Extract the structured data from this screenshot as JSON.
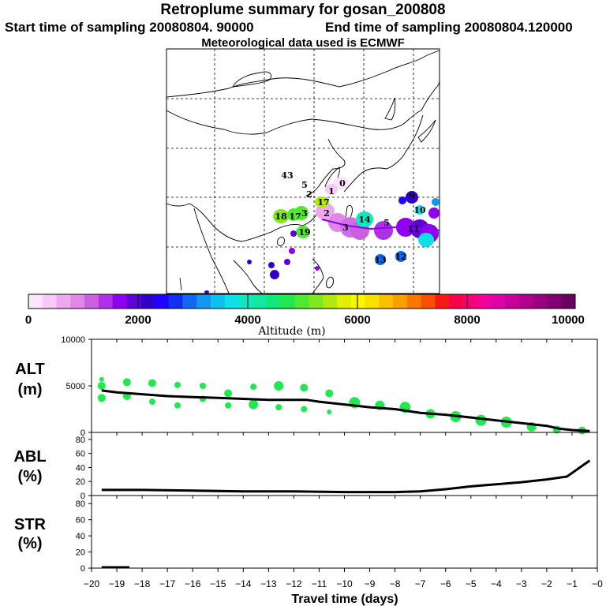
{
  "header": {
    "title": "Retroplume summary for gosan_200808",
    "start": "Start time of sampling 20080804. 90000",
    "end": "End time of sampling 20080804.120000",
    "met": "Meteorological data used is ECMWF"
  },
  "colorbar": {
    "ticks": [
      "0",
      "2000",
      "4000",
      "6000",
      "8000",
      "10000"
    ],
    "label": "Altitude (m)",
    "colors": [
      "#fde6fd",
      "#f8c8f8",
      "#eea8ee",
      "#e088e8",
      "#c860e0",
      "#b030e8",
      "#9000f0",
      "#6000d8",
      "#3000c8",
      "#2000ff",
      "#1030f0",
      "#1068f0",
      "#1098f0",
      "#10c0f0",
      "#10e0e8",
      "#10e8c0",
      "#10e8a0",
      "#10e878",
      "#20e850",
      "#50e830",
      "#80e820",
      "#b0e810",
      "#e0f000",
      "#f8f800",
      "#f8e000",
      "#f8c000",
      "#f8a000",
      "#f87800",
      "#f85000",
      "#f81818",
      "#f8004c",
      "#f80078",
      "#f00098",
      "#e000a8",
      "#c8009c",
      "#b0008c",
      "#980080",
      "#800070",
      "#680064"
    ]
  },
  "map_labels": [
    {
      "t": "43",
      "c": "#6000d8"
    },
    {
      "t": "5",
      "c": "#b030e8"
    },
    {
      "t": "2",
      "c": "#b030e8"
    },
    {
      "t": "1",
      "c": "#e088e8"
    },
    {
      "t": "0",
      "c": "#e088e8"
    },
    {
      "t": "17",
      "c": "#50e830"
    },
    {
      "t": "18",
      "c": "#50e830"
    },
    {
      "t": "17",
      "c": "#50e830"
    },
    {
      "t": "3",
      "c": "#50e830"
    },
    {
      "t": "19",
      "c": "#50e830"
    },
    {
      "t": "2",
      "c": "#e088e8"
    },
    {
      "t": "3",
      "c": "#c860e0"
    },
    {
      "t": "14",
      "c": "#10c0f0"
    },
    {
      "t": "5",
      "c": "#9000f0"
    },
    {
      "t": "13",
      "c": "#1068f0"
    },
    {
      "t": "12",
      "c": "#1068f0"
    },
    {
      "t": "10",
      "c": "#10c0f0"
    },
    {
      "t": "11",
      "c": "#3000c8"
    },
    {
      "t": "9",
      "c": "#9000f0"
    }
  ],
  "chart_data": [
    {
      "type": "scatter",
      "panel": "ALT",
      "ylabel": "ALT\n(m)",
      "ylim": [
        0,
        10000
      ],
      "yticks": [
        "0",
        "5000",
        "10000"
      ],
      "xlim": [
        -20,
        0
      ],
      "line": {
        "x": [
          -19.6,
          -19,
          -18,
          -17,
          -16,
          -15,
          -14,
          -13,
          -12,
          -11.5,
          -11,
          -10,
          -9,
          -8,
          -7.5,
          -7,
          -6,
          -5,
          -4,
          -3,
          -2,
          -1.5,
          -1,
          -0.3
        ],
        "y": [
          4500,
          4300,
          4100,
          3900,
          3800,
          3700,
          3600,
          3500,
          3500,
          3500,
          3300,
          3000,
          2700,
          2500,
          2300,
          2100,
          1900,
          1600,
          1300,
          1000,
          700,
          400,
          250,
          150
        ]
      },
      "points": {
        "x": [
          -19.6,
          -19.6,
          -19.6,
          -18.6,
          -18.6,
          -17.6,
          -17.6,
          -16.6,
          -16.6,
          -15.6,
          -15.6,
          -14.6,
          -14.6,
          -13.6,
          -13.6,
          -12.6,
          -12.6,
          -11.6,
          -11.6,
          -10.6,
          -10.6,
          -9.6,
          -8.6,
          -7.6,
          -6.6,
          -5.6,
          -4.6,
          -3.6,
          -2.6,
          -1.6,
          -0.6
        ],
        "y": [
          5700,
          5000,
          3700,
          5400,
          3900,
          5300,
          3300,
          5100,
          2900,
          5000,
          3600,
          4200,
          2900,
          4900,
          3000,
          5000,
          2700,
          4800,
          2500,
          4200,
          2200,
          3200,
          2900,
          2700,
          2000,
          1700,
          1300,
          1100,
          600,
          300,
          200
        ],
        "size": [
          3,
          5,
          5,
          5,
          5,
          5,
          4,
          4,
          4,
          4,
          4,
          5,
          4,
          4,
          6,
          6,
          4,
          5,
          4,
          5,
          3,
          7,
          6,
          7,
          6,
          7,
          7,
          7,
          6,
          5,
          5
        ],
        "color": "#20e850"
      }
    },
    {
      "type": "line",
      "panel": "ABL",
      "ylabel": "ABL\n(%)",
      "ylim": [
        0,
        90
      ],
      "yticks": [
        "0",
        "20",
        "40",
        "60",
        "80"
      ],
      "xlim": [
        -20,
        0
      ],
      "x": [
        -19.6,
        -18,
        -16,
        -14,
        -12,
        -10,
        -8,
        -7,
        -6,
        -5,
        -4,
        -3,
        -2,
        -1.2,
        -0.3
      ],
      "y": [
        8,
        8,
        7,
        6,
        6,
        5,
        5,
        6,
        9,
        13,
        16,
        19,
        23,
        27,
        50
      ]
    },
    {
      "type": "line",
      "panel": "STR",
      "ylabel": "STR\n(%)",
      "ylim": [
        0,
        90
      ],
      "yticks": [
        "0",
        "20",
        "40",
        "60",
        "80"
      ],
      "xlim": [
        -20,
        0
      ],
      "x": [
        -19.6,
        -18.5
      ],
      "y": [
        1,
        1
      ]
    }
  ],
  "xaxis": {
    "ticks": [
      "−20",
      "−19",
      "−18",
      "−17",
      "−16",
      "−15",
      "−14",
      "−13",
      "−12",
      "−11",
      "−10",
      "−9",
      "−8",
      "−7",
      "−6",
      "−5",
      "−4",
      "−3",
      "−2",
      "−1",
      "−0"
    ],
    "label": "Travel time (days)"
  }
}
